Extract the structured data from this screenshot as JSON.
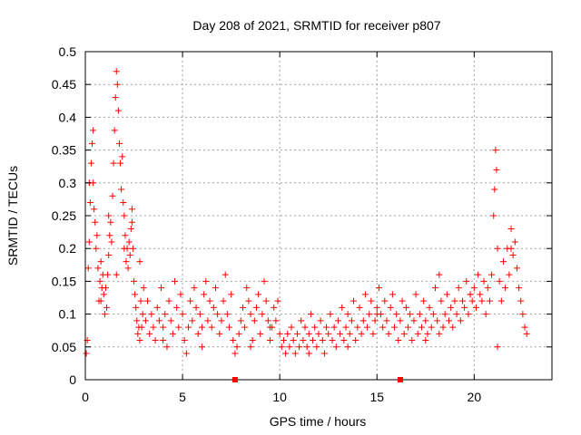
{
  "chart_data": {
    "type": "scatter",
    "title": "Day 208 of 2021, SRMTID for receiver p807",
    "xlabel": "GPS time / hours",
    "ylabel": "SRMTID / TECUs",
    "xlim": [
      0,
      24
    ],
    "ylim": [
      0,
      0.5
    ],
    "xticks": [
      0,
      5,
      10,
      15,
      20
    ],
    "xtick_labels": [
      "0",
      "5",
      "10",
      "15",
      "20"
    ],
    "yticks": [
      0,
      0.05,
      0.1,
      0.15,
      0.2,
      0.25,
      0.3,
      0.35,
      0.4,
      0.45,
      0.5
    ],
    "ytick_labels": [
      "0",
      "0.05",
      "0.1",
      "0.15",
      "0.2",
      "0.25",
      "0.3",
      "0.35",
      "0.4",
      "0.45",
      "0.5"
    ],
    "grid": true,
    "marker": "+",
    "marker_color": "#ff0000",
    "baseline_markers_x": [
      7.7,
      16.2
    ],
    "series": [
      {
        "name": "SRMTID",
        "x": [
          0.05,
          0.1,
          0.15,
          0.2,
          0.25,
          0.3,
          0.35,
          0.4,
          0.45,
          0.5,
          0.55,
          0.6,
          0.65,
          0.7,
          0.75,
          0.8,
          0.85,
          0.9,
          0.95,
          1.0,
          1.05,
          1.1,
          1.15,
          1.2,
          1.25,
          1.3,
          1.35,
          1.4,
          1.45,
          1.5,
          1.55,
          1.6,
          1.65,
          1.7,
          1.75,
          1.8,
          1.85,
          1.9,
          1.95,
          2.0,
          2.05,
          2.1,
          2.15,
          2.2,
          2.25,
          2.3,
          2.35,
          2.4,
          2.45,
          2.5,
          2.55,
          2.6,
          2.65,
          2.7,
          2.75,
          2.8,
          2.85,
          2.9,
          2.95,
          3.0,
          3.1,
          3.2,
          3.3,
          3.4,
          3.5,
          3.6,
          3.7,
          3.8,
          3.9,
          4.0,
          4.1,
          4.2,
          4.3,
          4.4,
          4.5,
          4.6,
          4.7,
          4.8,
          4.9,
          5.0,
          5.1,
          5.2,
          5.3,
          5.4,
          5.5,
          5.6,
          5.7,
          5.8,
          5.9,
          6.0,
          6.1,
          6.2,
          6.3,
          6.4,
          6.5,
          6.6,
          6.7,
          6.8,
          6.9,
          7.0,
          7.1,
          7.2,
          7.3,
          7.4,
          7.5,
          7.6,
          7.7,
          7.8,
          7.9,
          8.0,
          8.1,
          8.2,
          8.3,
          8.4,
          8.5,
          8.6,
          8.7,
          8.8,
          8.9,
          9.0,
          9.1,
          9.2,
          9.3,
          9.4,
          9.5,
          9.6,
          9.7,
          9.8,
          9.9,
          10.0,
          10.1,
          10.2,
          10.3,
          10.4,
          10.5,
          10.6,
          10.7,
          10.8,
          10.9,
          11.0,
          11.1,
          11.2,
          11.3,
          11.4,
          11.5,
          11.6,
          11.7,
          11.8,
          11.9,
          12.0,
          12.1,
          12.2,
          12.3,
          12.4,
          12.5,
          12.6,
          12.7,
          12.8,
          12.9,
          13.0,
          13.1,
          13.2,
          13.3,
          13.4,
          13.5,
          13.6,
          13.7,
          13.8,
          13.9,
          14.0,
          14.1,
          14.2,
          14.3,
          14.4,
          14.5,
          14.6,
          14.7,
          14.8,
          14.9,
          15.0,
          15.1,
          15.2,
          15.3,
          15.4,
          15.5,
          15.6,
          15.7,
          15.8,
          15.9,
          16.0,
          16.1,
          16.2,
          16.3,
          16.4,
          16.5,
          16.6,
          16.7,
          16.8,
          16.9,
          17.0,
          17.1,
          17.2,
          17.3,
          17.4,
          17.5,
          17.6,
          17.7,
          17.8,
          17.9,
          18.0,
          18.1,
          18.2,
          18.3,
          18.4,
          18.5,
          18.6,
          18.7,
          18.8,
          18.9,
          19.0,
          19.1,
          19.2,
          19.3,
          19.4,
          19.5,
          19.6,
          19.7,
          19.8,
          19.9,
          20.0,
          20.1,
          20.2,
          20.3,
          20.4,
          20.5,
          20.6,
          20.7,
          20.8,
          20.9,
          21.0,
          21.05,
          21.1,
          21.15,
          21.2,
          21.3,
          21.4,
          21.5,
          21.6,
          21.7,
          21.8,
          21.9,
          22.0,
          22.1,
          22.2,
          22.3,
          22.4,
          22.5,
          22.6,
          22.7,
          0.2,
          0.4,
          0.8,
          1.2,
          1.6,
          2.0,
          2.4,
          2.8,
          4.0,
          6.0,
          8.5,
          9.5,
          11.5,
          13.5,
          15.0,
          17.5,
          18.2,
          19.8,
          21.2,
          21.9
        ],
        "y": [
          0.04,
          0.06,
          0.17,
          0.21,
          0.27,
          0.33,
          0.36,
          0.3,
          0.26,
          0.24,
          0.2,
          0.22,
          0.17,
          0.12,
          0.15,
          0.18,
          0.14,
          0.16,
          0.13,
          0.1,
          0.14,
          0.11,
          0.16,
          0.19,
          0.22,
          0.24,
          0.21,
          0.28,
          0.33,
          0.38,
          0.43,
          0.47,
          0.45,
          0.41,
          0.36,
          0.33,
          0.29,
          0.34,
          0.27,
          0.25,
          0.22,
          0.18,
          0.2,
          0.17,
          0.21,
          0.19,
          0.23,
          0.26,
          0.2,
          0.15,
          0.13,
          0.11,
          0.09,
          0.07,
          0.08,
          0.06,
          0.12,
          0.08,
          0.1,
          0.14,
          0.09,
          0.12,
          0.07,
          0.1,
          0.08,
          0.06,
          0.11,
          0.09,
          0.14,
          0.08,
          0.1,
          0.05,
          0.12,
          0.09,
          0.07,
          0.15,
          0.11,
          0.08,
          0.13,
          0.1,
          0.06,
          0.04,
          0.08,
          0.12,
          0.09,
          0.14,
          0.11,
          0.07,
          0.1,
          0.05,
          0.13,
          0.15,
          0.09,
          0.12,
          0.08,
          0.11,
          0.14,
          0.1,
          0.07,
          0.09,
          0.12,
          0.16,
          0.1,
          0.08,
          0.13,
          0.06,
          0.04,
          0.05,
          0.07,
          0.09,
          0.11,
          0.08,
          0.14,
          0.12,
          0.1,
          0.06,
          0.09,
          0.11,
          0.13,
          0.07,
          0.1,
          0.15,
          0.12,
          0.09,
          0.06,
          0.08,
          0.11,
          0.09,
          0.12,
          0.07,
          0.05,
          0.06,
          0.04,
          0.07,
          0.05,
          0.08,
          0.06,
          0.04,
          0.07,
          0.05,
          0.09,
          0.06,
          0.08,
          0.05,
          0.07,
          0.1,
          0.06,
          0.08,
          0.05,
          0.07,
          0.09,
          0.06,
          0.04,
          0.08,
          0.07,
          0.1,
          0.06,
          0.08,
          0.05,
          0.09,
          0.07,
          0.11,
          0.06,
          0.08,
          0.1,
          0.07,
          0.09,
          0.12,
          0.06,
          0.08,
          0.11,
          0.07,
          0.09,
          0.13,
          0.08,
          0.1,
          0.12,
          0.07,
          0.09,
          0.11,
          0.14,
          0.1,
          0.08,
          0.12,
          0.09,
          0.07,
          0.11,
          0.13,
          0.08,
          0.1,
          0.06,
          0.09,
          0.12,
          0.07,
          0.11,
          0.08,
          0.1,
          0.06,
          0.09,
          0.13,
          0.07,
          0.1,
          0.08,
          0.12,
          0.09,
          0.07,
          0.11,
          0.08,
          0.1,
          0.14,
          0.09,
          0.07,
          0.12,
          0.08,
          0.1,
          0.13,
          0.09,
          0.11,
          0.08,
          0.12,
          0.1,
          0.14,
          0.09,
          0.12,
          0.11,
          0.15,
          0.1,
          0.13,
          0.12,
          0.14,
          0.11,
          0.16,
          0.13,
          0.12,
          0.15,
          0.1,
          0.14,
          0.12,
          0.16,
          0.25,
          0.29,
          0.35,
          0.32,
          0.2,
          0.15,
          0.12,
          0.18,
          0.14,
          0.2,
          0.16,
          0.23,
          0.19,
          0.21,
          0.17,
          0.14,
          0.12,
          0.1,
          0.08,
          0.07,
          0.3,
          0.38,
          0.12,
          0.25,
          0.16,
          0.2,
          0.24,
          0.18,
          0.06,
          0.08,
          0.05,
          0.08,
          0.04,
          0.05,
          0.1,
          0.06,
          0.16,
          0.13,
          0.05,
          0.2
        ]
      }
    ]
  }
}
